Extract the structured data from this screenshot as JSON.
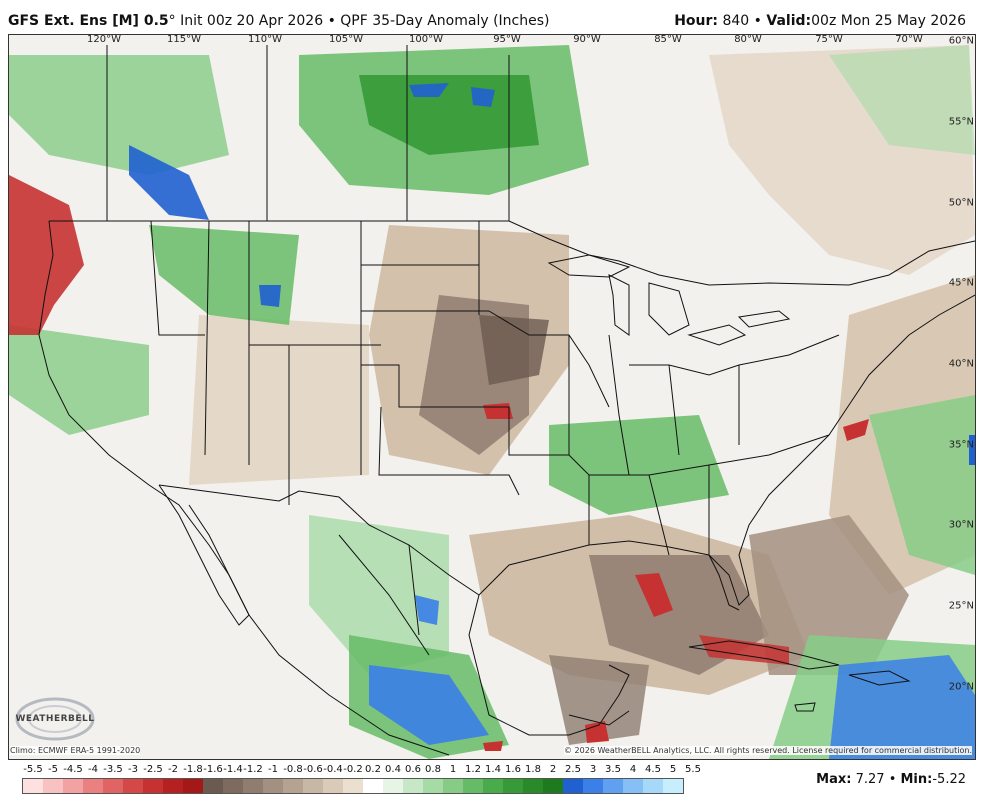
{
  "header": {
    "model": "GFS Ext. Ens [M] 0.5",
    "degree": "°",
    "init": "Init 00z 20 Apr 2026",
    "bullet": "•",
    "product": "QPF 35-Day Anomaly (Inches)",
    "hour_label": "Hour:",
    "hour_value": "840",
    "valid_label": "Valid:",
    "valid_value": "00z Mon 25 May 2026"
  },
  "longitudes": [
    "120°W",
    "115°W",
    "110°W",
    "105°W",
    "100°W",
    "95°W",
    "90°W",
    "85°W",
    "80°W",
    "75°W",
    "70°W"
  ],
  "latitudes": [
    "60°N",
    "55°N",
    "50°N",
    "45°N",
    "40°N",
    "35°N",
    "30°N",
    "25°N",
    "20°N"
  ],
  "climo": "Climo: ECMWF ERA-5 1991-2020",
  "copyright": "© 2026 WeatherBELL Analytics, LLC. All rights reserved. License required for commercial distribution.",
  "logo_text": "WEATHERBELL",
  "colorbar": {
    "labels": [
      "-5.5",
      "-5",
      "-4.5",
      "-4",
      "-3.5",
      "-3",
      "-2.5",
      "-2",
      "-1.8",
      "-1.6",
      "-1.4",
      "-1.2",
      "-1",
      "-0.8",
      "-0.6",
      "-0.4",
      "-0.2",
      "0.2",
      "0.4",
      "0.6",
      "0.8",
      "1",
      "1.2",
      "1.4",
      "1.6",
      "1.8",
      "2",
      "2.5",
      "3",
      "3.5",
      "4",
      "4.5",
      "5",
      "5.5"
    ],
    "colors": [
      "#fde0e0",
      "#f8c2c2",
      "#f2a2a2",
      "#ea8080",
      "#e06464",
      "#d44848",
      "#c63232",
      "#b52020",
      "#a51818",
      "#6b5a50",
      "#7d6b60",
      "#8f7d70",
      "#a39080",
      "#b5a392",
      "#c7b7a5",
      "#d9cbb8",
      "#ebe0cf",
      "#ffffff",
      "#e6f5e6",
      "#c6e8c6",
      "#a6dba6",
      "#86cc86",
      "#66bc66",
      "#4aab4a",
      "#369a36",
      "#2a8a2a",
      "#1e7a1e",
      "#2060d0",
      "#3a80e8",
      "#60a0f0",
      "#86bff5",
      "#a6d8fa",
      "#c6eefd"
    ]
  },
  "stats": {
    "max_label": "Max:",
    "max_value": "7.27",
    "min_label": "Min:",
    "min_value": "-5.22",
    "bullet": "•"
  }
}
